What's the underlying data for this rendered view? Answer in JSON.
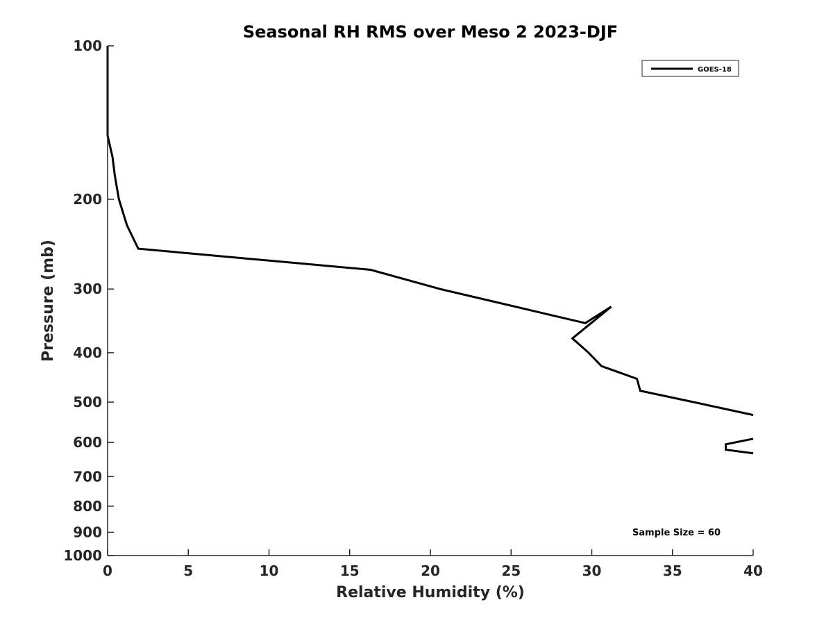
{
  "chart_data": {
    "type": "line",
    "title": "Seasonal RH RMS over Meso 2  2023-DJF",
    "xlabel": "Relative Humidity (%)",
    "ylabel": "Pressure (mb)",
    "xlim": [
      0,
      40
    ],
    "ylim": [
      100,
      1000
    ],
    "y_scale": "log",
    "y_reversed": true,
    "grid": false,
    "legend_position": "top-right",
    "x_ticks": [
      0,
      5,
      10,
      15,
      20,
      25,
      30,
      35,
      40
    ],
    "y_ticks": [
      100,
      200,
      300,
      400,
      500,
      600,
      700,
      800,
      900,
      1000
    ],
    "series": [
      {
        "name": "GOES-18",
        "color": "#000000",
        "segments": [
          [
            {
              "x": 0.0,
              "y": 100
            },
            {
              "x": 0.0,
              "y": 150
            },
            {
              "x": 0.3,
              "y": 165
            },
            {
              "x": 0.45,
              "y": 180
            },
            {
              "x": 0.7,
              "y": 200
            },
            {
              "x": 1.2,
              "y": 225
            },
            {
              "x": 1.9,
              "y": 250
            },
            {
              "x": 16.3,
              "y": 275
            },
            {
              "x": 20.6,
              "y": 300
            },
            {
              "x": 29.6,
              "y": 350
            },
            {
              "x": 31.2,
              "y": 325
            },
            {
              "x": 28.8,
              "y": 375
            },
            {
              "x": 29.8,
              "y": 400
            },
            {
              "x": 30.6,
              "y": 425
            },
            {
              "x": 32.8,
              "y": 450
            },
            {
              "x": 33.0,
              "y": 475
            },
            {
              "x": 36.3,
              "y": 500
            },
            {
              "x": 40.0,
              "y": 530
            }
          ],
          [
            {
              "x": 40.0,
              "y": 590
            },
            {
              "x": 38.3,
              "y": 605
            },
            {
              "x": 38.3,
              "y": 620
            },
            {
              "x": 40.0,
              "y": 630
            }
          ]
        ]
      }
    ],
    "annotations": [
      "Sample Size = 60"
    ]
  }
}
